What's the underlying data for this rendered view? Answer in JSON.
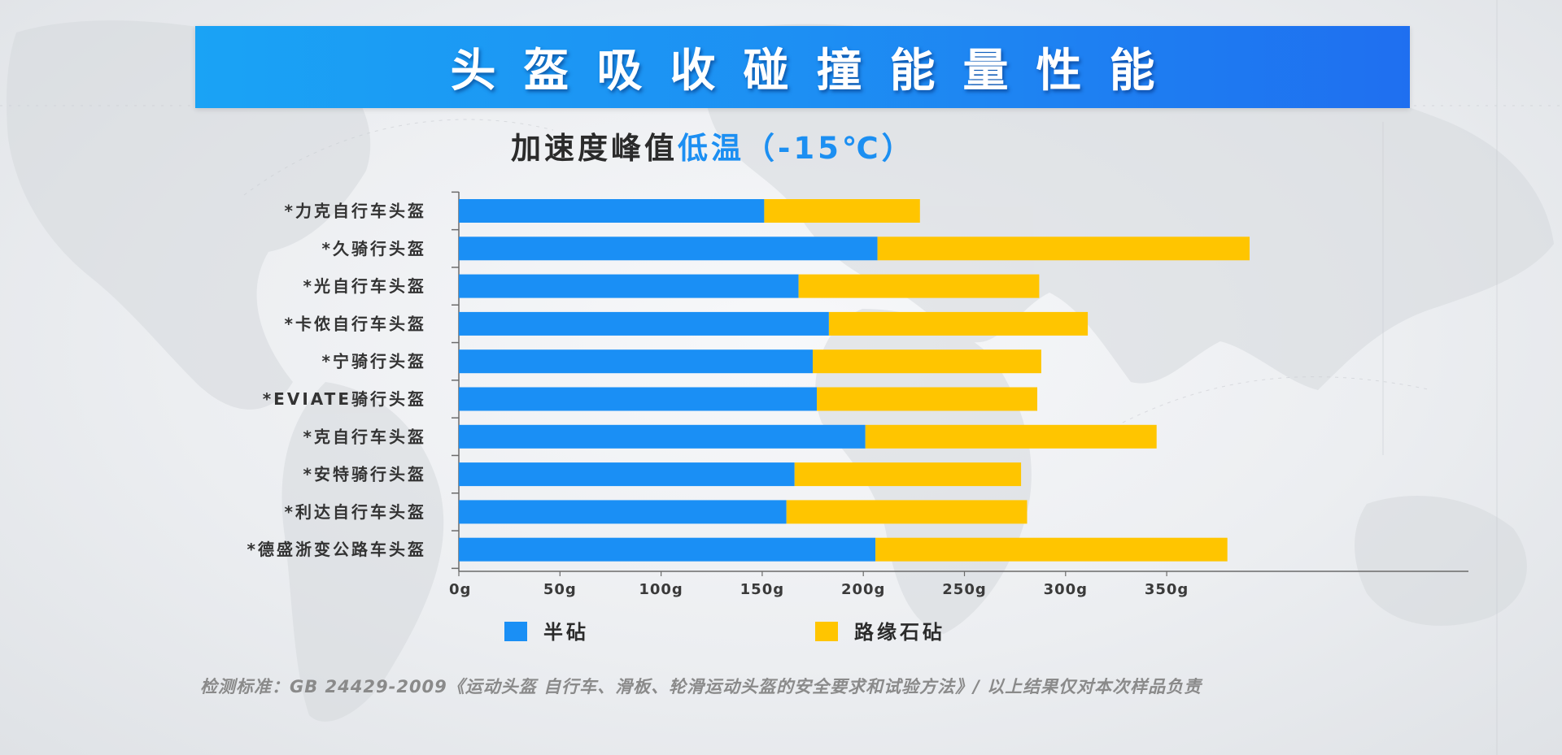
{
  "title": "头盔吸收碰撞能量性能",
  "subtitle_prefix": "加速度峰值",
  "subtitle_highlight": "低温（-15℃）",
  "footnote": "检测标准：GB 24429-2009《运动头盔 自行车、滑板、轮滑运动头盔的安全要求和试验方法》/ 以上结果仅对本次样品负责",
  "colors": {
    "series_half_anvil": "#1a8ff5",
    "series_curb_anvil": "#ffc500",
    "title_banner_start": "#1aa3f5",
    "title_banner_end": "#1f6ff0",
    "subtitle_highlight": "#1c8ff2"
  },
  "chart_data": {
    "type": "bar",
    "orientation": "horizontal",
    "stacked": true,
    "categories": [
      "*力克自行车头盔",
      "*久骑行头盔",
      "*光自行车头盔",
      "*卡侬自行车头盔",
      "*宁骑行头盔",
      "*EVIATE骑行头盔",
      "*克自行车头盔",
      "*安特骑行头盔",
      "*利达自行车头盔",
      "*德盛浙变公路车头盔"
    ],
    "series": [
      {
        "name": "半砧",
        "color": "#1a8ff5",
        "values": [
          151,
          207,
          168,
          183,
          175,
          177,
          201,
          166,
          162,
          206
        ]
      },
      {
        "name": "路缘石砧",
        "color": "#ffc500",
        "values": [
          77,
          184,
          119,
          128,
          113,
          109,
          144,
          112,
          119,
          174
        ]
      }
    ],
    "x_ticks": [
      "0g",
      "50g",
      "100g",
      "150g",
      "200g",
      "250g",
      "300g",
      "350g"
    ],
    "xlim": [
      0,
      400
    ],
    "grid": false,
    "legend_position": "bottom"
  }
}
